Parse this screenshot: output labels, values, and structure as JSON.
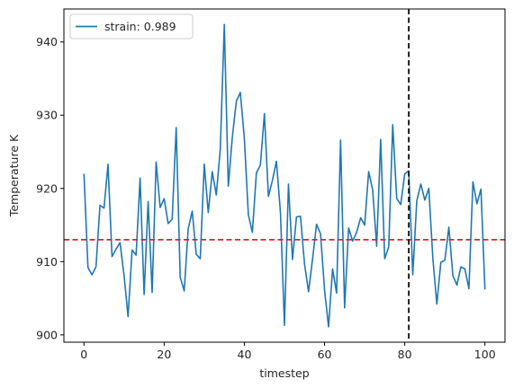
{
  "chart_data": {
    "type": "line",
    "title": "",
    "xlabel": "timestep",
    "ylabel": "Temperature K",
    "xlim": [
      -5,
      105
    ],
    "ylim": [
      899,
      944.5
    ],
    "xticks": [
      0,
      20,
      40,
      60,
      80,
      100
    ],
    "yticks": [
      900,
      910,
      920,
      930,
      940
    ],
    "grid": false,
    "legend": {
      "placement": "top-left"
    },
    "series": [
      {
        "name": "strain: 0.989",
        "color": "#1f77b4",
        "x": [
          0,
          1,
          2,
          3,
          4,
          5,
          6,
          7,
          8,
          9,
          10,
          11,
          12,
          13,
          14,
          15,
          16,
          17,
          18,
          19,
          20,
          21,
          22,
          23,
          24,
          25,
          26,
          27,
          28,
          29,
          30,
          31,
          32,
          33,
          34,
          35,
          36,
          37,
          38,
          39,
          40,
          41,
          42,
          43,
          44,
          45,
          46,
          47,
          48,
          49,
          50,
          51,
          52,
          53,
          54,
          55,
          56,
          57,
          58,
          59,
          60,
          61,
          62,
          63,
          64,
          65,
          66,
          67,
          68,
          69,
          70,
          71,
          72,
          73,
          74,
          75,
          76,
          77,
          78,
          79,
          80,
          81,
          82,
          83,
          84,
          85,
          86,
          87,
          88,
          89,
          90,
          91,
          92,
          93,
          94,
          95,
          96,
          97,
          98,
          99,
          100
        ],
        "y": [
          922,
          909.2,
          908.2,
          909.3,
          917.7,
          917.3,
          923.3,
          910.7,
          911.7,
          912.6,
          908.1,
          902.5,
          911.6,
          910.9,
          921.4,
          905.5,
          918.2,
          905.8,
          923.6,
          917.4,
          918.6,
          915.2,
          915.8,
          928.3,
          907.9,
          906,
          914.5,
          916.9,
          911,
          910.4,
          923.3,
          916.7,
          922.3,
          919.1,
          925.4,
          942.4,
          920.3,
          927,
          931.9,
          933.1,
          926.8,
          916.4,
          914,
          922.1,
          923.2,
          930.2,
          918.9,
          921.1,
          923.7,
          916.7,
          901.3,
          920.6,
          910.3,
          916.1,
          916.2,
          909.7,
          905.9,
          910.3,
          915.1,
          913.8,
          906.1,
          901.1,
          909,
          905.7,
          926.6,
          903.7,
          914.6,
          912.8,
          914,
          916,
          915,
          922.3,
          919.8,
          912.1,
          926.7,
          910.4,
          912,
          928.7,
          918.6,
          917.8,
          922,
          922.4,
          908.2,
          918.3,
          920.6,
          918.4,
          920,
          910.5,
          904.2,
          909.9,
          910.2,
          914.7,
          908.1,
          906.8,
          909.3,
          909,
          906.3,
          920.9,
          917.9,
          919.9,
          906.2
        ]
      }
    ],
    "reference_lines": [
      {
        "orientation": "horizontal",
        "value": 913,
        "color": "#d62728",
        "style": "dashed"
      },
      {
        "orientation": "vertical",
        "value": 81,
        "color": "#000000",
        "style": "dashed"
      }
    ]
  }
}
